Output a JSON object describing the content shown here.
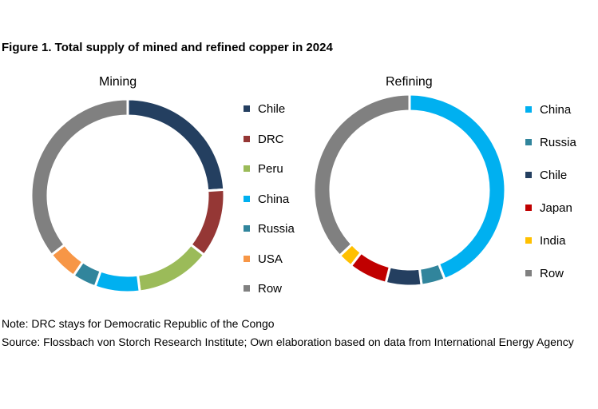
{
  "title": "Figure 1. Total supply of mined and refined copper in 2024",
  "chart_data": [
    {
      "type": "pie",
      "donut": true,
      "title": "Mining",
      "categories": [
        "Chile",
        "DRC",
        "Peru",
        "China",
        "Russia",
        "USA",
        "Row"
      ],
      "values": [
        24,
        11.5,
        12.5,
        7.5,
        4,
        5,
        35.5
      ],
      "colors": [
        "#243F60",
        "#953735",
        "#9BBB59",
        "#00B0F0",
        "#31859C",
        "#F79646",
        "#808080"
      ],
      "legend": "right"
    },
    {
      "type": "pie",
      "donut": true,
      "title": "Refining",
      "categories": [
        "China",
        "Russia",
        "Chile",
        "Japan",
        "India",
        "Row"
      ],
      "values": [
        44,
        4,
        6,
        6.5,
        2.5,
        37
      ],
      "colors": [
        "#00B0F0",
        "#31859C",
        "#243F60",
        "#C00000",
        "#FFC000",
        "#808080"
      ],
      "legend": "right"
    }
  ],
  "note": "Note: DRC stays for Democratic Republic of the Congo",
  "source": "Source: Flossbach von Storch Research Institute; Own elaboration based on data from International Energy Agency"
}
